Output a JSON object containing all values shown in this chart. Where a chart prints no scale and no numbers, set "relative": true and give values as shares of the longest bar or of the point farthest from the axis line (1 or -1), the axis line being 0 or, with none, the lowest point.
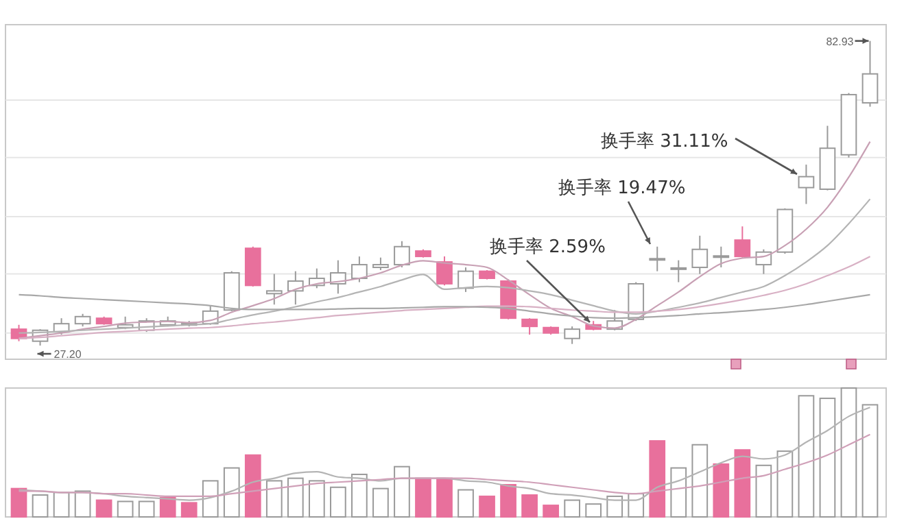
{
  "chart_data": [
    {
      "type": "candlestick",
      "categories": [
        null,
        null,
        null,
        null,
        null,
        null,
        null,
        null,
        null,
        null,
        null,
        null,
        null,
        null,
        null,
        null,
        null,
        null,
        null,
        null,
        null,
        null,
        null,
        null,
        null,
        null,
        null,
        null,
        null,
        null,
        null,
        null,
        null,
        null,
        null,
        null,
        null,
        null,
        null,
        null,
        null
      ],
      "ohlc": [
        [
          30.2,
          31.0,
          28.0,
          28.5
        ],
        [
          28.0,
          30.2,
          27.2,
          30.0
        ],
        [
          29.7,
          32.2,
          29.2,
          31.2
        ],
        [
          31.2,
          33.0,
          30.7,
          32.5
        ],
        [
          32.2,
          32.5,
          31.0,
          31.2
        ],
        [
          30.5,
          32.5,
          30.2,
          31.0
        ],
        [
          30.0,
          32.2,
          29.7,
          31.7
        ],
        [
          31.0,
          32.5,
          30.7,
          31.7
        ],
        [
          31.0,
          31.7,
          30.7,
          31.2
        ],
        [
          31.2,
          34.5,
          31.0,
          33.5
        ],
        [
          33.7,
          40.8,
          33.5,
          40.5
        ],
        [
          45.0,
          45.3,
          38.0,
          38.2
        ],
        [
          36.7,
          40.3,
          34.7,
          37.2
        ],
        [
          37.2,
          40.8,
          34.7,
          39.0
        ],
        [
          38.2,
          41.3,
          37.7,
          39.5
        ],
        [
          38.5,
          42.8,
          36.7,
          40.5
        ],
        [
          39.5,
          43.5,
          38.8,
          42.0
        ],
        [
          41.5,
          43.3,
          41.0,
          42.0
        ],
        [
          42.0,
          46.3,
          41.5,
          45.3
        ],
        [
          44.5,
          44.8,
          43.3,
          43.5
        ],
        [
          42.5,
          43.5,
          38.2,
          38.5
        ],
        [
          37.7,
          41.5,
          37.0,
          40.8
        ],
        [
          40.8,
          41.0,
          39.3,
          39.5
        ],
        [
          39.0,
          39.3,
          32.0,
          32.2
        ],
        [
          32.0,
          32.2,
          29.2,
          30.7
        ],
        [
          30.5,
          30.7,
          29.2,
          29.5
        ],
        [
          28.5,
          30.7,
          27.5,
          30.2
        ],
        [
          31.0,
          31.7,
          30.0,
          30.2
        ],
        [
          30.2,
          33.7,
          30.0,
          31.7
        ],
        [
          32.0,
          38.8,
          31.7,
          38.5
        ],
        [
          43.0,
          45.3,
          40.8,
          43.1
        ],
        [
          41.3,
          42.8,
          38.8,
          41.4
        ],
        [
          41.5,
          47.3,
          40.3,
          44.8
        ],
        [
          43.5,
          45.3,
          41.5,
          43.6
        ],
        [
          46.5,
          49.0,
          43.3,
          43.5
        ],
        [
          42.0,
          44.8,
          40.3,
          44.3
        ],
        [
          44.3,
          52.3,
          44.0,
          52.1
        ],
        [
          56.1,
          60.3,
          53.1,
          58.1
        ],
        [
          55.8,
          67.4,
          55.6,
          63.3
        ],
        [
          62.1,
          73.4,
          61.6,
          73.1
        ],
        [
          71.6,
          82.93,
          70.9,
          76.9
        ]
      ],
      "colors": [
        "#e8709c",
        "#9a9a9a",
        "#9a9a9a",
        "#9a9a9a",
        "#e8709c",
        "#9a9a9a",
        "#9a9a9a",
        "#9a9a9a",
        "#9a9a9a",
        "#9a9a9a",
        "#9a9a9a",
        "#e8709c",
        "#9a9a9a",
        "#9a9a9a",
        "#9a9a9a",
        "#9a9a9a",
        "#9a9a9a",
        "#9a9a9a",
        "#9a9a9a",
        "#e8709c",
        "#e8709c",
        "#9a9a9a",
        "#e8709c",
        "#e8709c",
        "#e8709c",
        "#e8709c",
        "#9a9a9a",
        "#e8709c",
        "#9a9a9a",
        "#9a9a9a",
        "#9a9a9a",
        "#9a9a9a",
        "#9a9a9a",
        "#9a9a9a",
        "#e8709c",
        "#9a9a9a",
        "#9a9a9a",
        "#9a9a9a",
        "#9a9a9a",
        "#9a9a9a",
        "#9a9a9a"
      ],
      "series": [
        {
          "type": "line",
          "color": "#c8a0b4",
          "values": [
            28.5,
            29,
            29.5,
            30.2,
            30.7,
            31.3,
            31.5,
            31.6,
            31.4,
            31.8,
            33.3,
            34.5,
            35.8,
            37.5,
            38.5,
            38.9,
            39.5,
            40.5,
            41.9,
            42.7,
            42.3,
            42.0,
            41.5,
            39.2,
            36.5,
            34.0,
            32.5,
            30.8,
            30.4,
            32.0,
            34.5,
            37.0,
            39.8,
            42.2,
            43.2,
            43.5,
            45.5,
            48.5,
            52.5,
            58.0,
            64.5
          ]
        },
        {
          "type": "line",
          "color": "#b4b4b4",
          "values": [
            29.5,
            29.6,
            29.8,
            30.0,
            30.2,
            30.4,
            30.6,
            30.8,
            31.0,
            31.2,
            32.0,
            32.8,
            33.5,
            34.3,
            35.2,
            36.0,
            37.0,
            38.0,
            39.2,
            40.2,
            37.5,
            37.8,
            38.0,
            37.8,
            37.2,
            36.5,
            35.5,
            34.5,
            33.5,
            33.0,
            33.5,
            34.2,
            35.0,
            36.0,
            37.0,
            38.0,
            40.0,
            42.5,
            45.5,
            49.5,
            54.0
          ]
        },
        {
          "type": "line",
          "color": "#d8b0c4",
          "values": [
            28.5,
            28.7,
            29.0,
            29.3,
            29.6,
            29.8,
            30.0,
            30.2,
            30.4,
            30.5,
            30.8,
            31.2,
            31.5,
            31.9,
            32.3,
            32.7,
            33.0,
            33.3,
            33.6,
            33.8,
            34.0,
            34.2,
            34.4,
            34.4,
            34.3,
            34.0,
            33.7,
            33.5,
            33.3,
            33.3,
            33.5,
            33.8,
            34.3,
            34.9,
            35.6,
            36.4,
            37.3,
            38.5,
            40.0,
            41.6,
            43.5
          ]
        },
        {
          "type": "line",
          "color": "#a8a8a8",
          "values": [
            36.5,
            36.3,
            36.0,
            35.8,
            35.6,
            35.4,
            35.2,
            35.0,
            34.8,
            34.5,
            34.0,
            33.8,
            33.8,
            33.8,
            33.8,
            33.9,
            34.0,
            34.0,
            34.1,
            34.2,
            34.3,
            34.3,
            34.2,
            34.0,
            33.5,
            33.0,
            32.6,
            32.3,
            32.2,
            32.3,
            32.5,
            32.7,
            33.0,
            33.2,
            33.5,
            33.8,
            34.2,
            34.7,
            35.3,
            35.9,
            36.5
          ]
        }
      ],
      "ylim": [
        24.7,
        85.9
      ],
      "yticks": [
        {
          "value": 29.5,
          "label": null
        },
        {
          "value": 40.3,
          "label": null
        },
        {
          "value": 50.8,
          "label": null
        },
        {
          "value": 61.6,
          "label": null
        },
        {
          "value": 72.1,
          "label": null
        }
      ],
      "grid": "y",
      "annotations": [
        "82.93",
        "27.20",
        "换手率 2.59%",
        "换手率 19.47%",
        "换手率 31.11%"
      ]
    },
    {
      "type": "bar",
      "relative": true,
      "categories": [
        null,
        null,
        null,
        null,
        null,
        null,
        null,
        null,
        null,
        null,
        null,
        null,
        null,
        null,
        null,
        null,
        null,
        null,
        null,
        null,
        null,
        null,
        null,
        null,
        null,
        null,
        null,
        null,
        null,
        null,
        null,
        null,
        null,
        null,
        null,
        null,
        null,
        null,
        null,
        null,
        null
      ],
      "values": [
        0.22,
        0.17,
        0.19,
        0.2,
        0.13,
        0.12,
        0.12,
        0.15,
        0.11,
        0.28,
        0.38,
        0.48,
        0.28,
        0.3,
        0.28,
        0.23,
        0.33,
        0.22,
        0.39,
        0.3,
        0.3,
        0.21,
        0.16,
        0.25,
        0.17,
        0.09,
        0.13,
        0.1,
        0.16,
        0.18,
        0.59,
        0.38,
        0.56,
        0.41,
        0.52,
        0.4,
        0.51,
        0.94,
        0.92,
        1,
        0.87
      ],
      "colors": [
        "#e8709c",
        "#9a9a9a",
        "#9a9a9a",
        "#9a9a9a",
        "#e8709c",
        "#9a9a9a",
        "#9a9a9a",
        "#e8709c",
        "#e8709c",
        "#9a9a9a",
        "#9a9a9a",
        "#e8709c",
        "#9a9a9a",
        "#9a9a9a",
        "#9a9a9a",
        "#9a9a9a",
        "#9a9a9a",
        "#9a9a9a",
        "#9a9a9a",
        "#e8709c",
        "#e8709c",
        "#9a9a9a",
        "#e8709c",
        "#e8709c",
        "#e8709c",
        "#e8709c",
        "#9a9a9a",
        "#9a9a9a",
        "#9a9a9a",
        "#9a9a9a",
        "#e8709c",
        "#9a9a9a",
        "#9a9a9a",
        "#e8709c",
        "#e8709c",
        "#9a9a9a",
        "#9a9a9a",
        "#9a9a9a",
        "#9a9a9a",
        "#9a9a9a",
        "#9a9a9a"
      ],
      "series": [
        {
          "type": "line",
          "color": "#b4b4b4",
          "values": [
            0.21,
            0.2,
            0.19,
            0.19,
            0.18,
            0.16,
            0.15,
            0.14,
            0.13,
            0.15,
            0.2,
            0.27,
            0.3,
            0.34,
            0.35,
            0.31,
            0.3,
            0.28,
            0.3,
            0.3,
            0.3,
            0.28,
            0.27,
            0.24,
            0.22,
            0.18,
            0.17,
            0.15,
            0.13,
            0.13,
            0.23,
            0.28,
            0.35,
            0.42,
            0.47,
            0.45,
            0.48,
            0.58,
            0.67,
            0.78,
            0.85
          ]
        },
        {
          "type": "line",
          "color": "#d0a0b8",
          "values": [
            0.2,
            0.2,
            0.19,
            0.19,
            0.18,
            0.18,
            0.17,
            0.16,
            0.16,
            0.16,
            0.18,
            0.2,
            0.22,
            0.24,
            0.26,
            0.27,
            0.28,
            0.29,
            0.3,
            0.3,
            0.3,
            0.3,
            0.29,
            0.28,
            0.27,
            0.25,
            0.23,
            0.21,
            0.19,
            0.18,
            0.2,
            0.22,
            0.24,
            0.27,
            0.3,
            0.32,
            0.37,
            0.42,
            0.48,
            0.56,
            0.64
          ]
        }
      ]
    }
  ]
}
